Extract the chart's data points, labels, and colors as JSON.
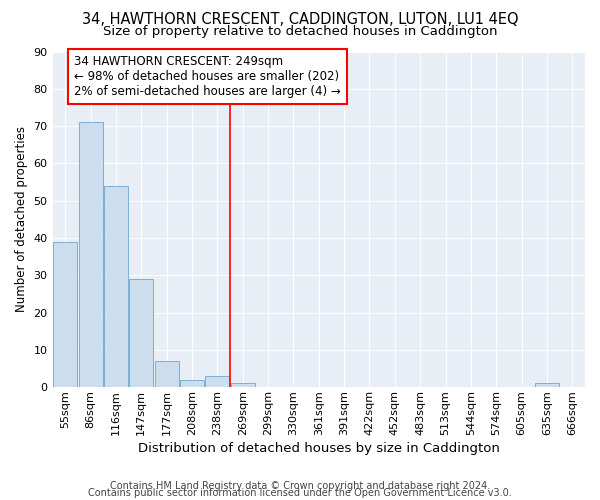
{
  "title": "34, HAWTHORN CRESCENT, CADDINGTON, LUTON, LU1 4EQ",
  "subtitle": "Size of property relative to detached houses in Caddington",
  "xlabel": "Distribution of detached houses by size in Caddington",
  "ylabel": "Number of detached properties",
  "bar_color": "#ccdded",
  "bar_edge_color": "#7ab0d4",
  "background_color": "#e8eef6",
  "grid_color": "#ffffff",
  "categories": [
    "55sqm",
    "86sqm",
    "116sqm",
    "147sqm",
    "177sqm",
    "208sqm",
    "238sqm",
    "269sqm",
    "299sqm",
    "330sqm",
    "361sqm",
    "391sqm",
    "422sqm",
    "452sqm",
    "483sqm",
    "513sqm",
    "544sqm",
    "574sqm",
    "605sqm",
    "635sqm",
    "666sqm"
  ],
  "values": [
    39,
    71,
    54,
    29,
    7,
    2,
    3,
    1,
    0,
    0,
    0,
    0,
    0,
    0,
    0,
    0,
    0,
    0,
    0,
    1,
    0
  ],
  "ylim": [
    0,
    90
  ],
  "yticks": [
    0,
    10,
    20,
    30,
    40,
    50,
    60,
    70,
    80,
    90
  ],
  "property_line_x": 6.5,
  "annotation_text": "34 HAWTHORN CRESCENT: 249sqm\n← 98% of detached houses are smaller (202)\n2% of semi-detached houses are larger (4) →",
  "footer_line1": "Contains HM Land Registry data © Crown copyright and database right 2024.",
  "footer_line2": "Contains public sector information licensed under the Open Government Licence v3.0.",
  "title_fontsize": 10.5,
  "subtitle_fontsize": 9.5,
  "xlabel_fontsize": 9.5,
  "ylabel_fontsize": 8.5,
  "tick_fontsize": 8,
  "annotation_fontsize": 8.5,
  "footer_fontsize": 7
}
